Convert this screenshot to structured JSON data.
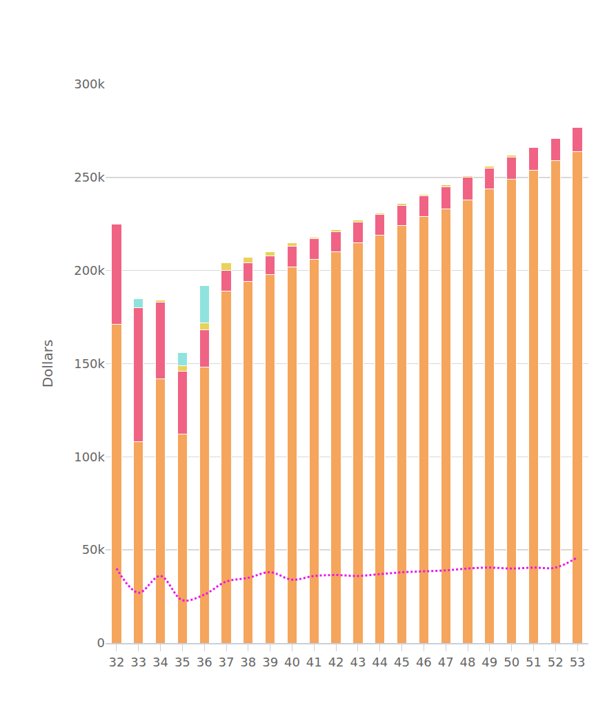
{
  "chart_data": {
    "type": "bar",
    "stacked": true,
    "grid": true,
    "y_label": "Dollars",
    "categories": [
      "32",
      "33",
      "34",
      "35",
      "36",
      "37",
      "38",
      "39",
      "40",
      "41",
      "42",
      "43",
      "44",
      "45",
      "46",
      "47",
      "48",
      "49",
      "50",
      "51",
      "52",
      "53"
    ],
    "ylim": [
      0,
      300000
    ],
    "yticks": [
      0,
      {
        "value": 50000,
        "label": "50k"
      },
      {
        "value": 100000,
        "label": "100k"
      },
      {
        "value": 150000,
        "label": "150k"
      },
      {
        "value": 200000,
        "label": "200k"
      },
      {
        "value": 250000,
        "label": "250k"
      },
      {
        "value": 300000,
        "label": "300k"
      }
    ],
    "series": [
      {
        "color": "#f5a55c",
        "values": [
          171000,
          108000,
          142000,
          112000,
          148000,
          189000,
          194000,
          198000,
          202000,
          206000,
          210000,
          215000,
          219000,
          224000,
          229000,
          233000,
          238000,
          244000,
          249000,
          254000,
          259000,
          264000
        ]
      },
      {
        "color": "#f06384",
        "values": [
          54000,
          72000,
          41000,
          34000,
          20000,
          11000,
          10000,
          10000,
          11000,
          11000,
          11000,
          11000,
          11000,
          11000,
          11000,
          12000,
          12000,
          11000,
          12000,
          12000,
          12000,
          13000
        ]
      },
      {
        "color": "#e8d25a",
        "values": [
          0,
          0,
          1000,
          3000,
          4000,
          4000,
          3000,
          2000,
          2000,
          1000,
          1000,
          1000,
          1000,
          1000,
          1000,
          1000,
          1000,
          1000,
          1000,
          0,
          0,
          0
        ]
      },
      {
        "color": "#8ee3de",
        "values": [
          0,
          5000,
          0,
          7000,
          20000,
          0,
          0,
          0,
          0,
          0,
          0,
          0,
          0,
          0,
          0,
          0,
          0,
          0,
          0,
          0,
          0,
          0
        ]
      },
      {
        "type": "line",
        "line_style": "dotted",
        "color": "#e818e8",
        "values": [
          40000,
          27000,
          36000,
          23000,
          26000,
          33000,
          35000,
          38000,
          34000,
          36000,
          36500,
          36000,
          37000,
          38000,
          38500,
          39000,
          40000,
          40500,
          40000,
          40500,
          40500,
          46000
        ]
      }
    ]
  }
}
